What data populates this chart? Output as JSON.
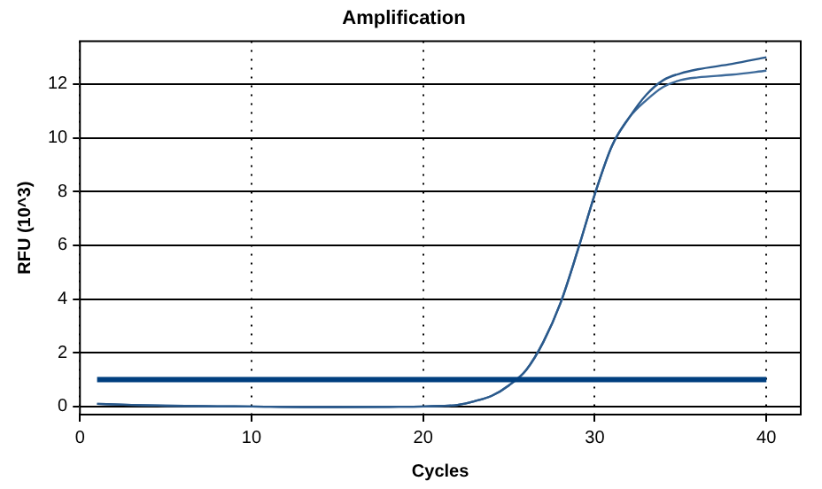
{
  "chart_data": {
    "type": "line",
    "title": "Amplification",
    "xlabel": "Cycles",
    "ylabel": "RFU (10^3)",
    "x": [
      1,
      3,
      5,
      8,
      10,
      13,
      15,
      18,
      20,
      21,
      22,
      23,
      24,
      25,
      26,
      27,
      28,
      29,
      30,
      31,
      32,
      33,
      34,
      35,
      36,
      38,
      40
    ],
    "series": [
      {
        "color": "#2b5a8c",
        "values": [
          0.1,
          0.06,
          0.03,
          0.01,
          0,
          -0.02,
          -0.02,
          -0.01,
          0,
          0.02,
          0.06,
          0.2,
          0.4,
          0.79,
          1.36,
          2.4,
          3.85,
          5.8,
          7.9,
          9.7,
          10.75,
          11.6,
          12.15,
          12.4,
          12.55,
          12.75,
          13.0
        ]
      },
      {
        "color": "#3d6a9a",
        "values": [
          0.1,
          0.06,
          0.03,
          0.01,
          0,
          -0.02,
          -0.02,
          -0.01,
          0,
          0.02,
          0.06,
          0.2,
          0.4,
          0.79,
          1.36,
          2.4,
          3.85,
          5.8,
          7.9,
          9.7,
          10.75,
          11.4,
          11.9,
          12.15,
          12.25,
          12.35,
          12.5
        ]
      }
    ],
    "xlim": [
      0,
      42
    ],
    "xticks": [
      0,
      10,
      20,
      30,
      40
    ],
    "ylim": [
      -0.3,
      13.6
    ],
    "yticks": [
      0,
      2,
      4,
      6,
      8,
      10,
      12
    ],
    "ref_lines": [
      {
        "axis": "y",
        "value": 1,
        "color": "#003f7f"
      }
    ],
    "grid": true,
    "legend": false,
    "marker": "none",
    "line_style": "solid"
  }
}
